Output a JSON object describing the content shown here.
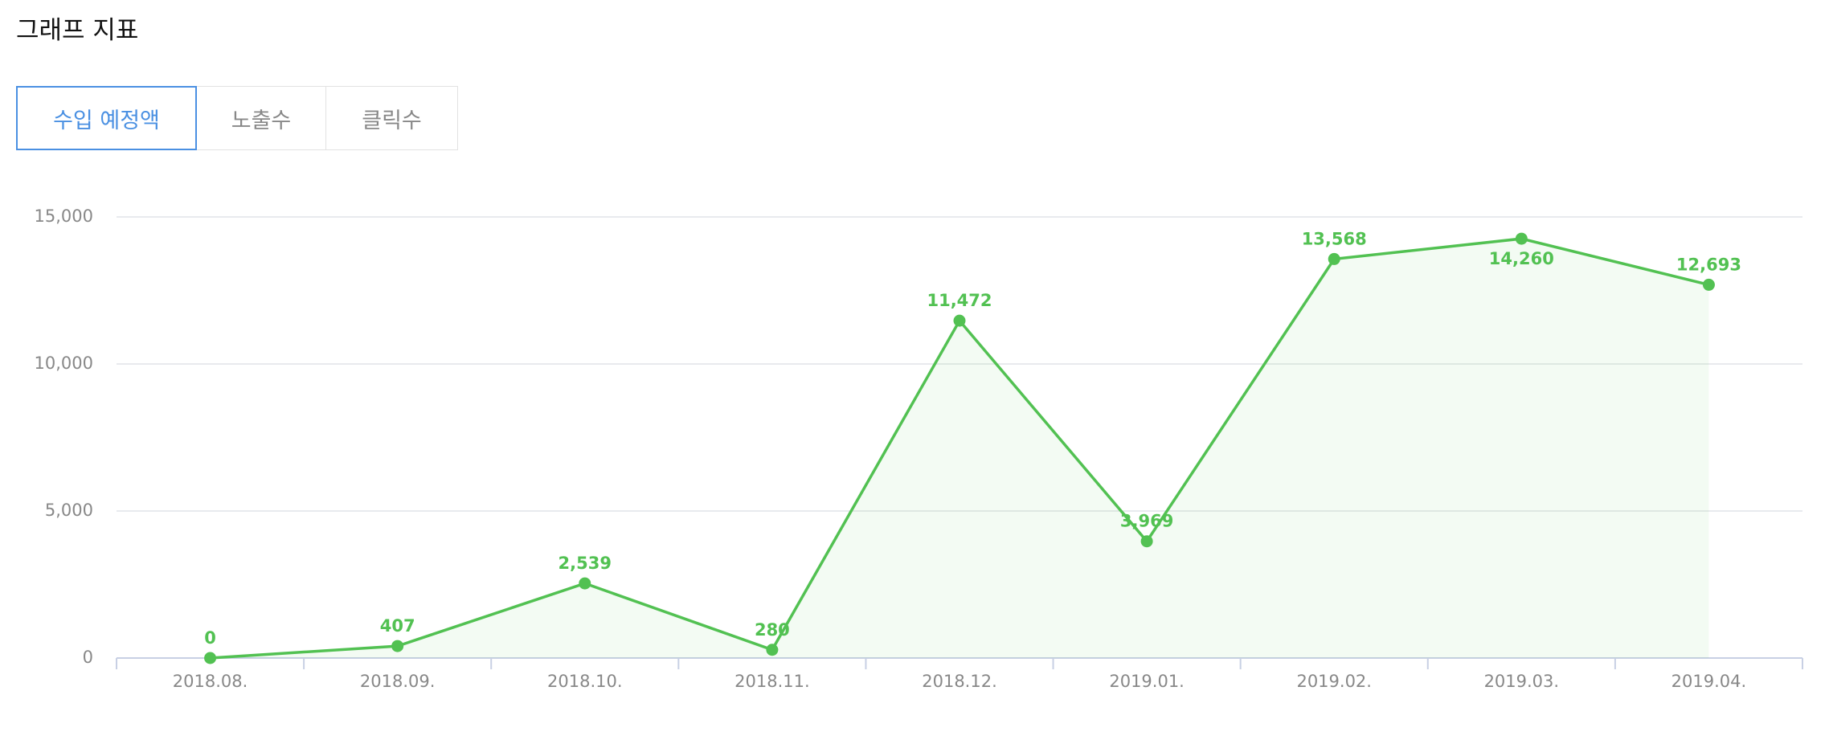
{
  "title": "그래프 지표",
  "tabs": [
    "수입 예정액",
    "노출수",
    "클릭수"
  ],
  "chart_data": {
    "type": "line",
    "categories": [
      "2018.08.",
      "2018.09.",
      "2018.10.",
      "2018.11.",
      "2018.12.",
      "2019.01.",
      "2019.02.",
      "2019.03.",
      "2019.04."
    ],
    "series": [
      {
        "name": "수입 예정액",
        "color": "#52c152",
        "values": [
          0,
          407,
          2539,
          280,
          11472,
          3969,
          13568,
          14260,
          12693
        ],
        "value_labels": [
          "0",
          "407",
          "2,539",
          "280",
          "11,472",
          "3,969",
          "13,568",
          "14,260",
          "12,693"
        ]
      }
    ],
    "ylim": [
      0,
      15000
    ],
    "yticks": [
      0,
      {
        "value": 5000,
        "label": "5,000"
      },
      {
        "value": 10000,
        "label": "10,000"
      },
      {
        "value": 15000,
        "label": "15,000"
      }
    ],
    "grid": true,
    "area": true
  }
}
